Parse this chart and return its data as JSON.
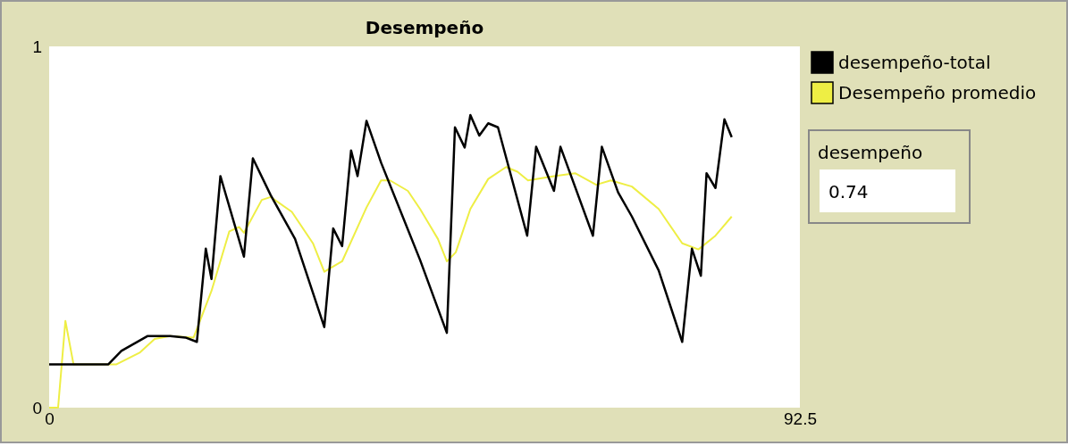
{
  "chart_data": {
    "type": "line",
    "title": "Desempeño",
    "xlim": [
      0,
      92.5
    ],
    "xticks": [
      0,
      92.5
    ],
    "ylim": [
      0,
      1
    ],
    "yticks": [
      0,
      1
    ],
    "grid": false,
    "legend": "right",
    "annotations": [
      "desempeño",
      "0.74"
    ],
    "series": [
      {
        "name": "desempeño-total",
        "color": "#000000",
        "x": [
          0,
          3,
          7.3,
          8.9,
          12.1,
          14.9,
          16.8,
          18.2,
          19.3,
          20,
          21.1,
          24,
          25.1,
          27.3,
          30.3,
          33.9,
          35,
          36.1,
          37.2,
          38,
          39.1,
          40.9,
          45.7,
          49,
          50,
          51.2,
          51.9,
          53,
          54.1,
          55.3,
          58.9,
          60,
          62.2,
          63,
          67,
          68.1,
          70.1,
          71.8,
          75.1,
          78,
          79.2,
          80.3,
          81,
          82.1,
          83.2,
          84.1
        ],
        "values": [
          0.12,
          0.12,
          0.12,
          0.157,
          0.198,
          0.198,
          0.194,
          0.182,
          0.44,
          0.356,
          0.641,
          0.418,
          0.69,
          0.588,
          0.467,
          0.223,
          0.496,
          0.447,
          0.712,
          0.641,
          0.794,
          0.678,
          0.409,
          0.207,
          0.776,
          0.72,
          0.81,
          0.753,
          0.787,
          0.776,
          0.476,
          0.722,
          0.6,
          0.722,
          0.476,
          0.722,
          0.596,
          0.529,
          0.38,
          0.182,
          0.44,
          0.365,
          0.649,
          0.608,
          0.798,
          0.749
        ]
      },
      {
        "name": "Desempeño promedio",
        "color": "#eeee44",
        "x": [
          0,
          1.1,
          2,
          3,
          8.3,
          11.2,
          13,
          14.9,
          17.8,
          20,
          22.2,
          23.4,
          24,
          26.2,
          27.3,
          29.9,
          32.5,
          33.9,
          36.1,
          39.1,
          40.9,
          42,
          44.2,
          45.7,
          47.9,
          49,
          50.1,
          51.9,
          54.1,
          56.3,
          57.7,
          59,
          62.2,
          64.8,
          67.4,
          69.2,
          71.8,
          75.1,
          78,
          80,
          82.1,
          84.1
        ],
        "values": [
          0,
          0,
          0.24,
          0.12,
          0.12,
          0.153,
          0.19,
          0.198,
          0.194,
          0.323,
          0.488,
          0.5,
          0.484,
          0.575,
          0.583,
          0.542,
          0.455,
          0.376,
          0.405,
          0.554,
          0.629,
          0.629,
          0.6,
          0.55,
          0.467,
          0.405,
          0.43,
          0.55,
          0.633,
          0.666,
          0.653,
          0.629,
          0.641,
          0.649,
          0.617,
          0.629,
          0.612,
          0.55,
          0.455,
          0.438,
          0.476,
          0.529
        ]
      }
    ]
  }
}
